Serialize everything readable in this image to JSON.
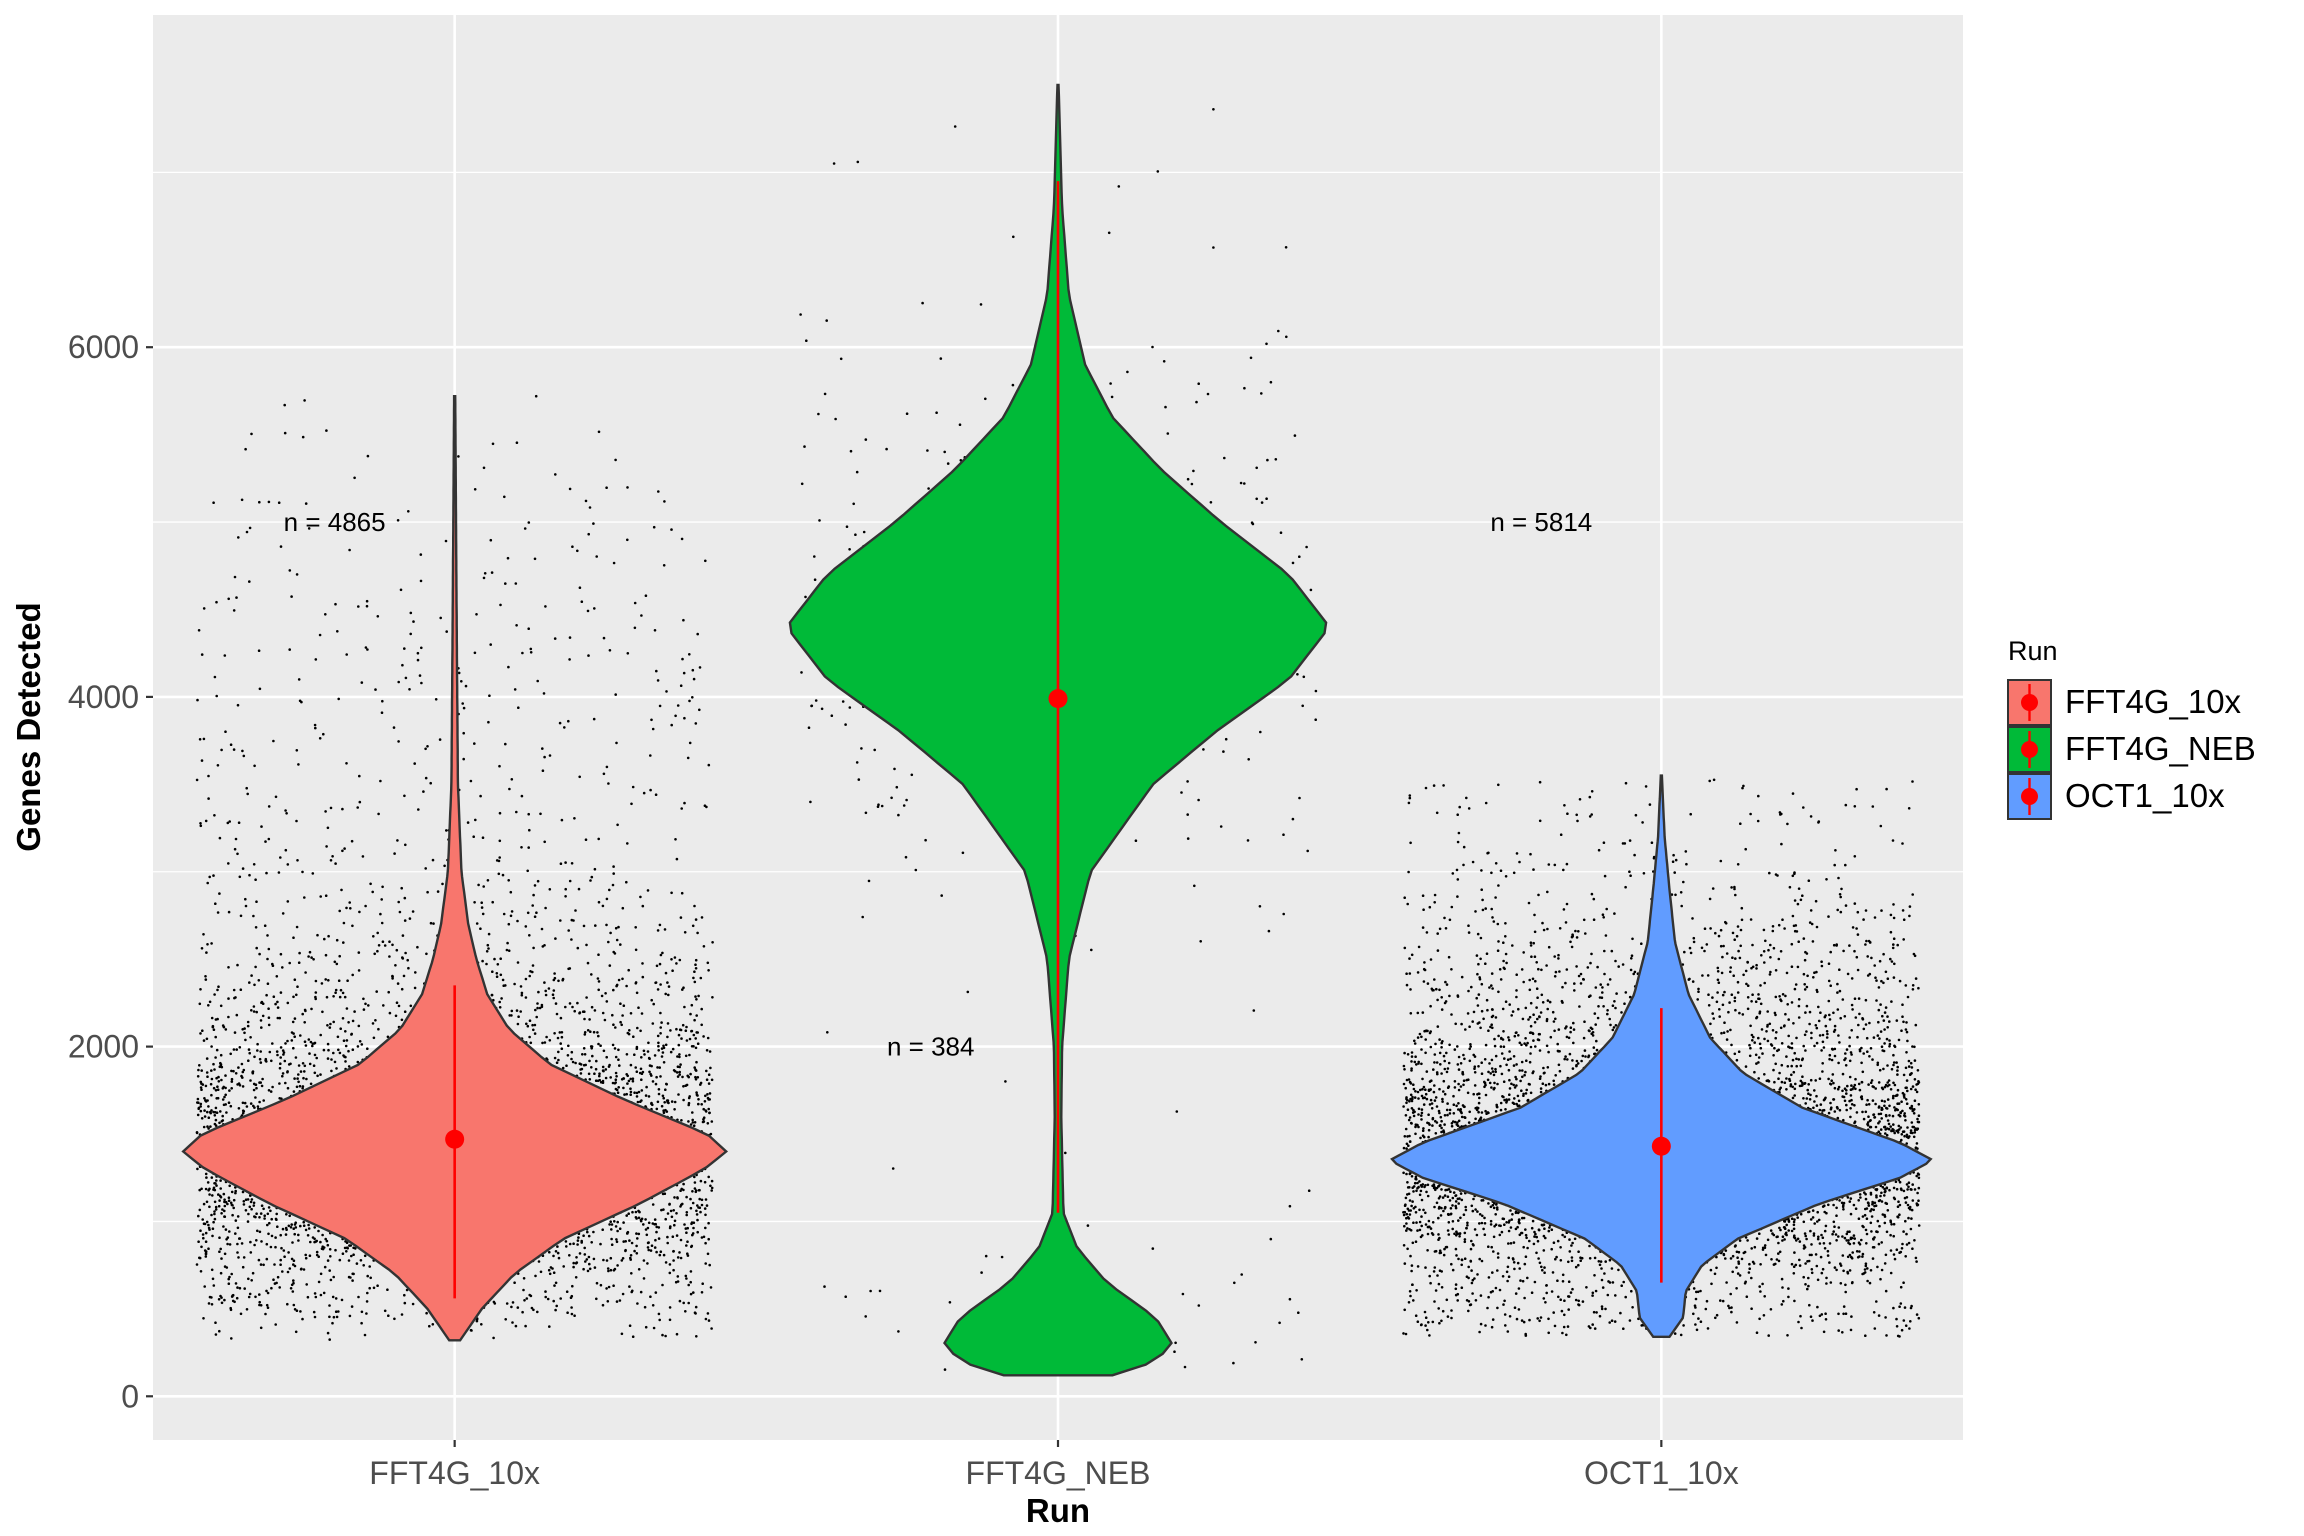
{
  "chart_data": {
    "type": "violin",
    "xlabel": "Run",
    "ylabel": "Genes Detected",
    "ylim": [
      -250,
      7900
    ],
    "yticks": [
      0,
      2000,
      4000,
      6000
    ],
    "ytick_labels": [
      "0",
      "2000",
      "4000",
      "6000"
    ],
    "grid": true,
    "legend": {
      "title": "Run",
      "placement": "right",
      "entries": [
        {
          "label": "FFT4G_10x",
          "color": "#F8766D"
        },
        {
          "label": "FFT4G_NEB",
          "color": "#00BA38"
        },
        {
          "label": "OCT1_10x",
          "color": "#619CFF"
        }
      ]
    },
    "categories": [
      "FFT4G_10x",
      "FFT4G_NEB",
      "OCT1_10x"
    ],
    "series": [
      {
        "category": "FFT4G_10x",
        "color": "#F8766D",
        "n_label": "n = 4865",
        "n_label_y": 5000,
        "n_points": 4865,
        "median": 1470,
        "range_line": [
          560,
          2350
        ],
        "ymin": 320,
        "ymax": 5720,
        "density": [
          [
            320,
            0.02
          ],
          [
            500,
            0.1
          ],
          [
            700,
            0.22
          ],
          [
            900,
            0.4
          ],
          [
            1100,
            0.68
          ],
          [
            1300,
            0.92
          ],
          [
            1400,
            1.0
          ],
          [
            1500,
            0.93
          ],
          [
            1700,
            0.62
          ],
          [
            1900,
            0.35
          ],
          [
            2100,
            0.2
          ],
          [
            2300,
            0.12
          ],
          [
            2500,
            0.08
          ],
          [
            2700,
            0.05
          ],
          [
            3000,
            0.025
          ],
          [
            3500,
            0.012
          ],
          [
            4300,
            0.008
          ],
          [
            5000,
            0.005
          ],
          [
            5720,
            0.002
          ]
        ]
      },
      {
        "category": "FFT4G_NEB",
        "color": "#00BA38",
        "n_label": "n = 384",
        "n_label_y": 2000,
        "n_points": 384,
        "median": 3990,
        "range_line": [
          1050,
          6950
        ],
        "ymin": 120,
        "ymax": 7500,
        "density": [
          [
            120,
            0.2
          ],
          [
            200,
            0.36
          ],
          [
            300,
            0.42
          ],
          [
            450,
            0.36
          ],
          [
            650,
            0.18
          ],
          [
            850,
            0.07
          ],
          [
            1050,
            0.02
          ],
          [
            1600,
            0.012
          ],
          [
            2000,
            0.015
          ],
          [
            2500,
            0.04
          ],
          [
            3000,
            0.12
          ],
          [
            3500,
            0.35
          ],
          [
            3800,
            0.58
          ],
          [
            4100,
            0.85
          ],
          [
            4400,
            1.0
          ],
          [
            4700,
            0.85
          ],
          [
            5000,
            0.6
          ],
          [
            5300,
            0.38
          ],
          [
            5600,
            0.2
          ],
          [
            5900,
            0.1
          ],
          [
            6300,
            0.04
          ],
          [
            6800,
            0.015
          ],
          [
            7500,
            0.002
          ]
        ]
      },
      {
        "category": "OCT1_10x",
        "color": "#619CFF",
        "n_label": "n = 5814",
        "n_label_y": 5000,
        "n_points": 5814,
        "median": 1430,
        "range_line": [
          650,
          2220
        ],
        "ymin": 340,
        "ymax": 3550,
        "density": [
          [
            340,
            0.03
          ],
          [
            450,
            0.08
          ],
          [
            600,
            0.09
          ],
          [
            750,
            0.15
          ],
          [
            900,
            0.28
          ],
          [
            1100,
            0.58
          ],
          [
            1250,
            0.88
          ],
          [
            1350,
            1.0
          ],
          [
            1450,
            0.88
          ],
          [
            1650,
            0.52
          ],
          [
            1850,
            0.3
          ],
          [
            2050,
            0.18
          ],
          [
            2300,
            0.1
          ],
          [
            2600,
            0.05
          ],
          [
            2900,
            0.03
          ],
          [
            3200,
            0.012
          ],
          [
            3550,
            0.002
          ]
        ]
      }
    ]
  }
}
